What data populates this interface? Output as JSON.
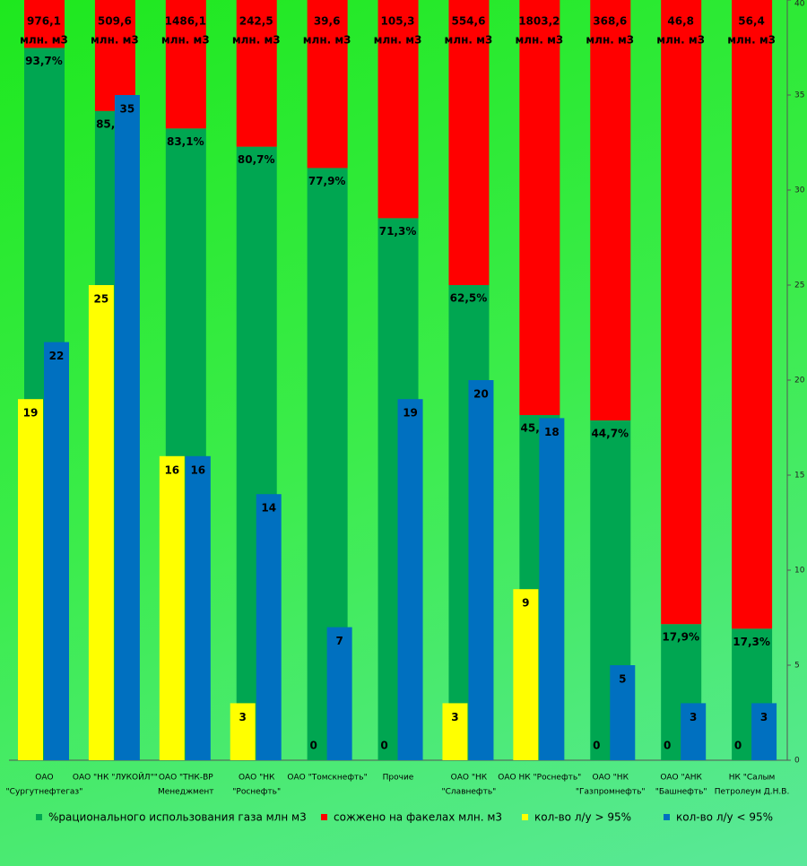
{
  "chart_data": {
    "type": "bar",
    "categories": [
      [
        "ОАО",
        "\"Сургутнефтегаз\""
      ],
      [
        "ОАО \"НК \"ЛУКОЙЛ\"\""
      ],
      [
        "ОАО \"ТНК-ВР",
        "Менеджмент"
      ],
      [
        "ОАО \"НК",
        "\"Роснефть\""
      ],
      [
        "ОАО \"Томскнефть\""
      ],
      [
        "Прочие"
      ],
      [
        "ОАО \"НК",
        "\"Славнефть\""
      ],
      [
        "ОАО НК \"Роснефть\""
      ],
      [
        "ОАО \"НК",
        "\"Газпромнефть\""
      ],
      [
        "ОАО \"АНК",
        "\"Башнефть\""
      ],
      [
        "НК \"Салым",
        "Петролеум Д.Н.В."
      ]
    ],
    "series": [
      {
        "name": "%рационального использования газа млн м3",
        "color": "#00a651",
        "axis": "y2",
        "stack": "pct",
        "values": [
          93.7,
          85.4,
          83.1,
          80.7,
          77.9,
          71.3,
          62.5,
          45.4,
          44.7,
          17.9,
          17.3
        ],
        "value_labels": [
          "93,7%",
          "85,4%",
          "83,1%",
          "80,7%",
          "77,9%",
          "71,3%",
          "62,5%",
          "45,4%",
          "44,7%",
          "17,9%",
          "17,3%"
        ]
      },
      {
        "name": "сожжено на факелах млн. м3",
        "color": "#ff0000",
        "axis": "y2",
        "stack": "pct",
        "values": [
          6.3,
          14.6,
          16.9,
          19.3,
          22.1,
          28.7,
          37.5,
          54.6,
          55.3,
          82.1,
          82.7
        ]
      },
      {
        "name": "кол-во л/у > 95%",
        "color": "#ffff00",
        "values": [
          19,
          25,
          16,
          3,
          0,
          0,
          3,
          9,
          0,
          0,
          0
        ]
      },
      {
        "name": "кол-во л/у < 95%",
        "color": "#0070c0",
        "values": [
          22,
          35,
          16,
          14,
          7,
          19,
          20,
          18,
          5,
          3,
          3
        ]
      }
    ],
    "flare_labels": [
      "976,1",
      "509,6",
      "1486,1",
      "242,5",
      "39,6",
      "105,3",
      "554,6",
      "1803,2",
      "368,6",
      "46,8",
      "56,4"
    ],
    "flare_unit": "млн. м3",
    "ylim": [
      0,
      40
    ],
    "yticks": [
      0,
      5,
      10,
      15,
      20,
      25,
      30,
      35,
      40
    ],
    "y2lim": [
      0,
      100
    ],
    "legend": "bottom"
  }
}
